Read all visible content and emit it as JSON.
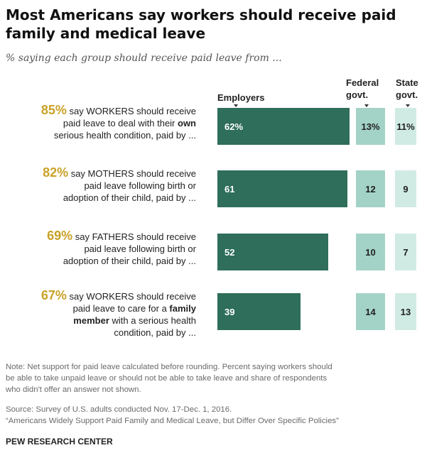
{
  "title": "Most Americans say workers should receive paid family and medical leave",
  "subtitle": "% saying each group should receive paid leave from ...",
  "note_lines": [
    "Note: Net support for paid leave calculated before rounding. Percent saying workers should",
    "be able to take unpaid leave or should not be able to take leave and share of respondents",
    "who didn't offer an answer not shown."
  ],
  "source_lines": [
    "Source: Survey of U.S. adults conducted Nov. 17-Dec. 1, 2016.",
    "“Americans Widely Support Paid Family and Medical Leave, but Differ Over Specific Policies”"
  ],
  "brand": "PEW RESEARCH CENTER",
  "colors": {
    "employers": "#2e6e5a",
    "federal": "#a3d3c6",
    "state": "#d0ebe4",
    "pct_gold": "#c9a227"
  },
  "chart_data": {
    "type": "bar",
    "columns": [
      {
        "key": "employers",
        "label": [
          "Employers"
        ]
      },
      {
        "key": "federal",
        "label": [
          "Federal",
          "govt."
        ]
      },
      {
        "key": "state",
        "label": [
          "State",
          "govt."
        ]
      }
    ],
    "rows": [
      {
        "pct": "85%",
        "lines": [
          [
            {
              "t": " say WORKERS should receive"
            }
          ],
          [
            {
              "t": "paid leave to deal with their "
            },
            {
              "t": "own",
              "b": true
            }
          ],
          [
            {
              "t": "serious health condition, paid by ..."
            }
          ]
        ],
        "labels": {
          "employers": "62%",
          "federal": "13%",
          "state": "11%"
        },
        "values": {
          "employers": 62,
          "federal": 13,
          "state": 11
        }
      },
      {
        "pct": "82%",
        "lines": [
          [
            {
              "t": " say MOTHERS should receive"
            }
          ],
          [
            {
              "t": "paid leave following birth or"
            }
          ],
          [
            {
              "t": "adoption of their child, paid by ..."
            }
          ]
        ],
        "labels": {
          "employers": "61",
          "federal": "12",
          "state": "9"
        },
        "values": {
          "employers": 61,
          "federal": 12,
          "state": 9
        }
      },
      {
        "pct": "69%",
        "lines": [
          [
            {
              "t": " say FATHERS should receive"
            }
          ],
          [
            {
              "t": "paid leave following birth or"
            }
          ],
          [
            {
              "t": "adoption of their child, paid by ..."
            }
          ]
        ],
        "labels": {
          "employers": "52",
          "federal": "10",
          "state": "7"
        },
        "values": {
          "employers": 52,
          "federal": 10,
          "state": 7
        }
      },
      {
        "pct": "67%",
        "lines": [
          [
            {
              "t": " say WORKERS should receive"
            }
          ],
          [
            {
              "t": "paid leave to care for a "
            },
            {
              "t": "family",
              "b": true
            }
          ],
          [
            {
              "t": "member",
              "b": true
            },
            {
              "t": " with a serious health"
            }
          ],
          [
            {
              "t": "condition, paid by ..."
            }
          ]
        ],
        "labels": {
          "employers": "39",
          "federal": "14",
          "state": "13"
        },
        "values": {
          "employers": 39,
          "federal": 14,
          "state": 13
        }
      }
    ]
  }
}
